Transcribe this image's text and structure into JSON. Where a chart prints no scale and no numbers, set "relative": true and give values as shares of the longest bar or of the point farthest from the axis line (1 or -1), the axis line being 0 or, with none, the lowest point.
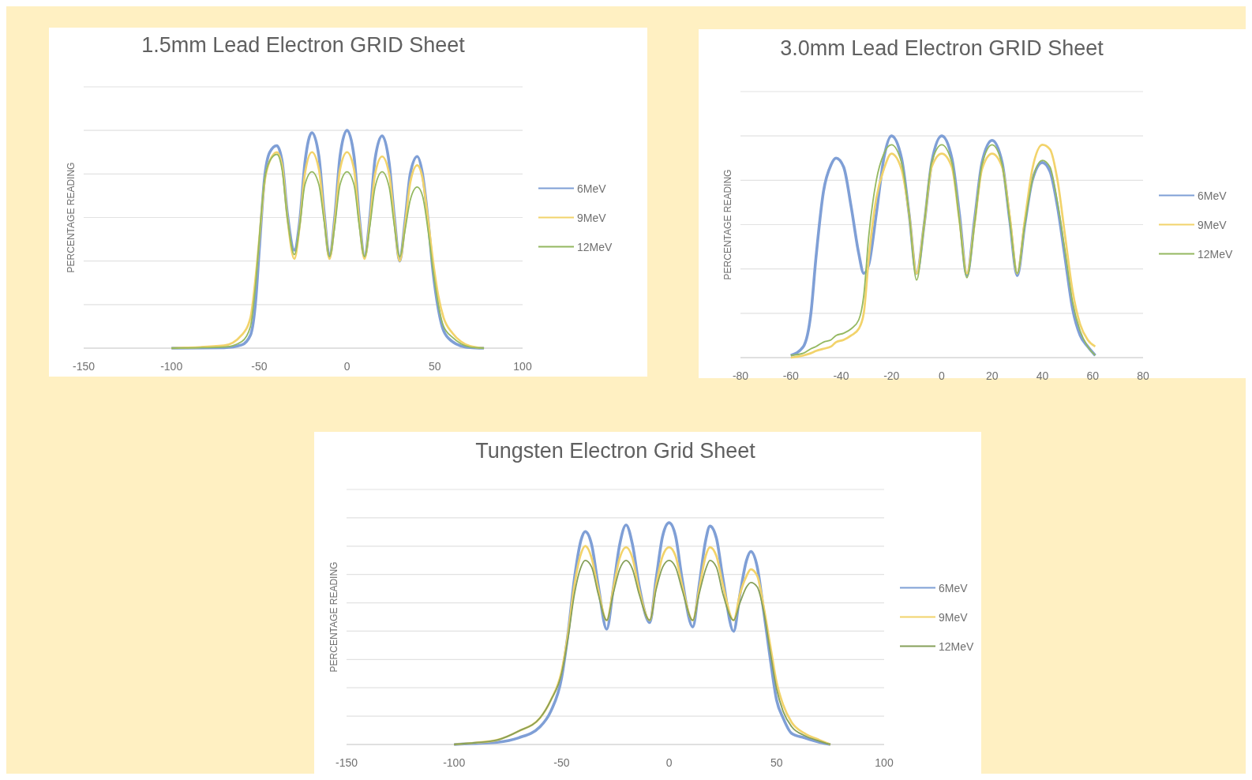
{
  "chart_data": [
    {
      "type": "line",
      "title": "1.5mm Lead Electron GRID Sheet",
      "ylabel": "PERCENTAGE READING",
      "relative": true,
      "grid": "y",
      "legend": "right",
      "xlim": [
        -150,
        100
      ],
      "xticks": [
        -150,
        -100,
        -50,
        0,
        50,
        100
      ],
      "x": [
        -100,
        -70,
        -60,
        -55,
        -52,
        -50,
        -47,
        -44,
        -40,
        -37,
        -34,
        -30,
        -27,
        -24,
        -20,
        -16,
        -13,
        -10,
        -7,
        -4,
        0,
        4,
        7,
        10,
        13,
        16,
        20,
        24,
        27,
        30,
        33,
        36,
        40,
        43,
        46,
        49,
        52,
        55,
        60,
        65,
        70,
        78
      ],
      "series": [
        {
          "name": "6MeV",
          "color": "#7f9fd6",
          "values": [
            0,
            0.002,
            0.015,
            0.06,
            0.22,
            0.45,
            0.78,
            0.9,
            0.93,
            0.86,
            0.62,
            0.45,
            0.58,
            0.85,
            0.99,
            0.88,
            0.62,
            0.42,
            0.6,
            0.88,
            1,
            0.88,
            0.6,
            0.42,
            0.6,
            0.87,
            0.975,
            0.85,
            0.6,
            0.4,
            0.58,
            0.8,
            0.88,
            0.8,
            0.6,
            0.35,
            0.18,
            0.08,
            0.03,
            0.01,
            0.003,
            0
          ]
        },
        {
          "name": "9MeV",
          "color": "#f2d36b",
          "values": [
            0,
            0.012,
            0.06,
            0.14,
            0.33,
            0.5,
            0.76,
            0.86,
            0.9,
            0.84,
            0.6,
            0.41,
            0.56,
            0.8,
            0.9,
            0.82,
            0.6,
            0.41,
            0.58,
            0.82,
            0.9,
            0.82,
            0.58,
            0.41,
            0.58,
            0.8,
            0.88,
            0.8,
            0.58,
            0.4,
            0.56,
            0.76,
            0.84,
            0.78,
            0.6,
            0.4,
            0.24,
            0.14,
            0.07,
            0.03,
            0.01,
            0
          ]
        },
        {
          "name": "12MeV",
          "color": "#94b860",
          "values": [
            0,
            0.005,
            0.03,
            0.1,
            0.3,
            0.5,
            0.77,
            0.86,
            0.89,
            0.82,
            0.6,
            0.43,
            0.56,
            0.75,
            0.81,
            0.75,
            0.58,
            0.42,
            0.56,
            0.75,
            0.81,
            0.75,
            0.56,
            0.42,
            0.56,
            0.74,
            0.81,
            0.74,
            0.56,
            0.42,
            0.54,
            0.68,
            0.74,
            0.7,
            0.55,
            0.36,
            0.2,
            0.1,
            0.05,
            0.02,
            0.005,
            0
          ]
        }
      ]
    },
    {
      "type": "line",
      "title": "3.0mm Lead Electron GRID Sheet",
      "ylabel": "PERCENTAGE READING",
      "relative": true,
      "grid": "y",
      "legend": "right",
      "xlim": [
        -80,
        80
      ],
      "xticks": [
        -80,
        -60,
        -40,
        -20,
        0,
        20,
        40,
        60,
        80
      ],
      "x": [
        -60,
        -55,
        -52,
        -50,
        -47,
        -44,
        -42,
        -39,
        -36,
        -33,
        -31,
        -29,
        -26,
        -23,
        -20,
        -16,
        -13,
        -10,
        -7,
        -4,
        0,
        4,
        7,
        10,
        13,
        16,
        20,
        24,
        27,
        30,
        33,
        36,
        40,
        43,
        46,
        49,
        52,
        55,
        58,
        61
      ],
      "series": [
        {
          "name": "6MeV",
          "color": "#7f9fd6",
          "values": [
            0.01,
            0.05,
            0.2,
            0.45,
            0.75,
            0.87,
            0.9,
            0.86,
            0.68,
            0.47,
            0.38,
            0.42,
            0.65,
            0.9,
            1,
            0.9,
            0.65,
            0.38,
            0.6,
            0.88,
            1,
            0.9,
            0.65,
            0.37,
            0.62,
            0.88,
            0.98,
            0.88,
            0.62,
            0.37,
            0.6,
            0.8,
            0.88,
            0.84,
            0.68,
            0.45,
            0.22,
            0.1,
            0.05,
            0.01
          ]
        },
        {
          "name": "9MeV",
          "color": "#f2d36b",
          "values": [
            0,
            0.01,
            0.02,
            0.03,
            0.04,
            0.05,
            0.07,
            0.08,
            0.1,
            0.13,
            0.2,
            0.45,
            0.72,
            0.85,
            0.92,
            0.85,
            0.65,
            0.38,
            0.6,
            0.86,
            0.92,
            0.86,
            0.62,
            0.38,
            0.6,
            0.85,
            0.92,
            0.86,
            0.64,
            0.38,
            0.62,
            0.85,
            0.96,
            0.94,
            0.8,
            0.55,
            0.3,
            0.15,
            0.08,
            0.05
          ]
        },
        {
          "name": "12MeV",
          "color": "#94b860",
          "values": [
            0.01,
            0.02,
            0.04,
            0.05,
            0.07,
            0.08,
            0.1,
            0.11,
            0.13,
            0.17,
            0.28,
            0.55,
            0.8,
            0.92,
            0.96,
            0.88,
            0.65,
            0.35,
            0.6,
            0.88,
            0.96,
            0.88,
            0.62,
            0.36,
            0.6,
            0.87,
            0.96,
            0.87,
            0.62,
            0.38,
            0.6,
            0.8,
            0.89,
            0.86,
            0.7,
            0.48,
            0.25,
            0.12,
            0.05,
            0.01
          ]
        }
      ]
    },
    {
      "type": "line",
      "title": "Tungsten Electron Grid Sheet",
      "ylabel": "PERCENTAGE READING",
      "relative": true,
      "grid": "y",
      "legend": "right",
      "xlim": [
        -150,
        100
      ],
      "xticks": [
        -150,
        -100,
        -50,
        0,
        50,
        100
      ],
      "x": [
        -100,
        -90,
        -80,
        -70,
        -60,
        -55,
        -50,
        -47,
        -44,
        -41,
        -39,
        -36,
        -33,
        -29,
        -26,
        -23,
        -20,
        -17,
        -14,
        -9,
        -6,
        -3,
        0,
        3,
        6,
        11,
        14,
        17,
        19,
        22,
        25,
        30,
        33,
        36,
        38,
        41,
        44,
        47,
        50,
        53,
        57,
        63,
        70,
        75
      ],
      "series": [
        {
          "name": "6MeV",
          "color": "#7f9fd6",
          "values": [
            0,
            0.005,
            0.01,
            0.03,
            0.08,
            0.15,
            0.3,
            0.5,
            0.75,
            0.92,
            0.96,
            0.9,
            0.72,
            0.52,
            0.7,
            0.9,
            0.99,
            0.9,
            0.72,
            0.55,
            0.75,
            0.94,
            1,
            0.94,
            0.75,
            0.53,
            0.72,
            0.92,
            0.985,
            0.93,
            0.75,
            0.51,
            0.68,
            0.83,
            0.87,
            0.8,
            0.6,
            0.39,
            0.2,
            0.12,
            0.05,
            0.03,
            0.01,
            0
          ]
        },
        {
          "name": "9MeV",
          "color": "#f2d36b",
          "values": [
            0,
            0.008,
            0.02,
            0.06,
            0.12,
            0.2,
            0.33,
            0.5,
            0.72,
            0.86,
            0.895,
            0.84,
            0.7,
            0.56,
            0.7,
            0.84,
            0.89,
            0.84,
            0.7,
            0.56,
            0.72,
            0.85,
            0.89,
            0.85,
            0.72,
            0.56,
            0.7,
            0.85,
            0.89,
            0.85,
            0.72,
            0.56,
            0.68,
            0.76,
            0.79,
            0.76,
            0.62,
            0.45,
            0.28,
            0.18,
            0.1,
            0.05,
            0.02,
            0
          ]
        },
        {
          "name": "12MeV",
          "color": "#86a05a",
          "values": [
            0,
            0.008,
            0.02,
            0.06,
            0.12,
            0.2,
            0.32,
            0.48,
            0.68,
            0.8,
            0.83,
            0.8,
            0.68,
            0.56,
            0.68,
            0.79,
            0.83,
            0.79,
            0.68,
            0.56,
            0.7,
            0.8,
            0.83,
            0.8,
            0.7,
            0.56,
            0.68,
            0.79,
            0.83,
            0.8,
            0.68,
            0.56,
            0.64,
            0.71,
            0.73,
            0.71,
            0.6,
            0.42,
            0.25,
            0.15,
            0.08,
            0.04,
            0.015,
            0
          ]
        }
      ]
    }
  ]
}
